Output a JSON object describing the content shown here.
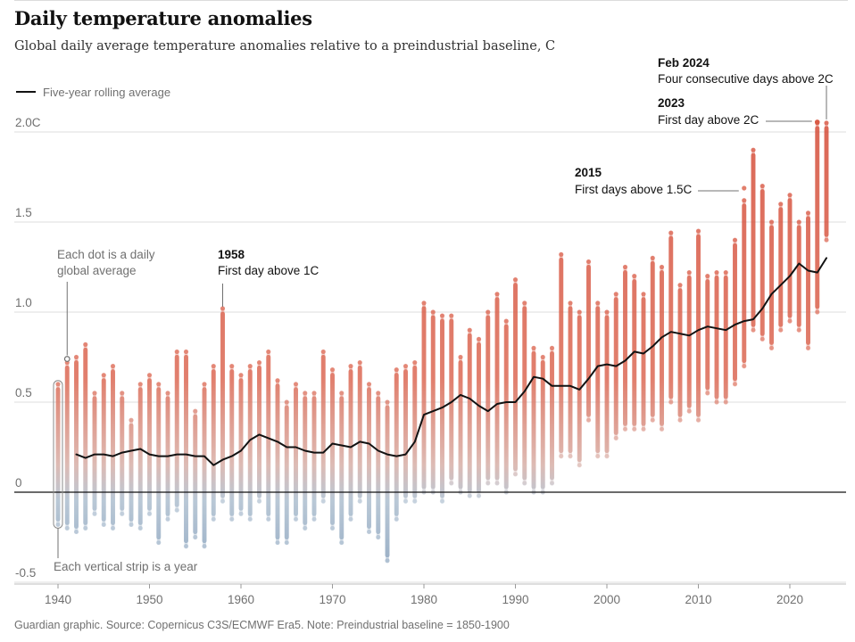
{
  "header": {
    "title": "Daily temperature anomalies",
    "subtitle": "Global daily average temperature anomalies relative to a preindustrial baseline, C"
  },
  "legend": {
    "line_label": "Five-year rolling average"
  },
  "footer": {
    "source": "Guardian graphic. Source: Copernicus C3S/ECMWF Era5. Note: Preindustrial baseline = 1850-1900"
  },
  "colors": {
    "warm": "#d95a45",
    "cool": "#8aa2bc",
    "line": "#121212",
    "grid": "#dcdcdc",
    "axis": "#121212"
  },
  "chart_data": {
    "type": "scatter",
    "title": "Daily temperature anomalies",
    "xlabel": "",
    "ylabel": "C",
    "xlim": [
      1940,
      2024
    ],
    "ylim": [
      -0.5,
      2.0
    ],
    "x_ticks": [
      1940,
      1950,
      1960,
      1970,
      1980,
      1990,
      2000,
      2010,
      2020
    ],
    "y_ticks": [
      {
        "value": -0.5,
        "label": "-0.5"
      },
      {
        "value": 0,
        "label": "0"
      },
      {
        "value": 0.5,
        "label": "0.5"
      },
      {
        "value": 1.0,
        "label": "1.0"
      },
      {
        "value": 1.5,
        "label": "1.5"
      },
      {
        "value": 2.0,
        "label": "2.0C"
      }
    ],
    "year_strips": {
      "years": [
        1940,
        1941,
        1942,
        1943,
        1944,
        1945,
        1946,
        1947,
        1948,
        1949,
        1950,
        1951,
        1952,
        1953,
        1954,
        1955,
        1956,
        1957,
        1958,
        1959,
        1960,
        1961,
        1962,
        1963,
        1964,
        1965,
        1966,
        1967,
        1968,
        1969,
        1970,
        1971,
        1972,
        1973,
        1974,
        1975,
        1976,
        1977,
        1978,
        1979,
        1980,
        1981,
        1982,
        1983,
        1984,
        1985,
        1986,
        1987,
        1988,
        1989,
        1990,
        1991,
        1992,
        1993,
        1994,
        1995,
        1996,
        1997,
        1998,
        1999,
        2000,
        2001,
        2002,
        2003,
        2004,
        2005,
        2006,
        2007,
        2008,
        2009,
        2010,
        2011,
        2012,
        2013,
        2014,
        2015,
        2016,
        2017,
        2018,
        2019,
        2020,
        2021,
        2022,
        2023,
        2024
      ],
      "min": [
        -0.18,
        -0.2,
        -0.22,
        -0.2,
        -0.12,
        -0.18,
        -0.2,
        -0.12,
        -0.18,
        -0.2,
        -0.12,
        -0.28,
        -0.15,
        -0.1,
        -0.3,
        -0.25,
        -0.3,
        -0.15,
        -0.05,
        -0.15,
        -0.12,
        -0.15,
        -0.05,
        -0.15,
        -0.28,
        -0.28,
        -0.15,
        -0.2,
        -0.15,
        -0.05,
        -0.2,
        -0.28,
        -0.15,
        -0.05,
        -0.22,
        -0.25,
        -0.38,
        -0.15,
        -0.05,
        -0.05,
        0.0,
        0.0,
        -0.05,
        0.05,
        0.0,
        -0.02,
        -0.02,
        0.05,
        0.05,
        0.0,
        0.1,
        0.05,
        0.0,
        0.0,
        0.05,
        0.2,
        0.2,
        0.15,
        0.4,
        0.2,
        0.2,
        0.3,
        0.35,
        0.35,
        0.35,
        0.4,
        0.35,
        0.5,
        0.4,
        0.45,
        0.4,
        0.55,
        0.5,
        0.5,
        0.6,
        0.7,
        0.9,
        0.85,
        0.8,
        0.9,
        0.95,
        0.9,
        0.8,
        1.0,
        1.4
      ],
      "max": [
        0.6,
        0.72,
        0.75,
        0.82,
        0.55,
        0.65,
        0.7,
        0.55,
        0.4,
        0.6,
        0.65,
        0.6,
        0.55,
        0.78,
        0.78,
        0.45,
        0.6,
        0.7,
        1.02,
        0.7,
        0.65,
        0.7,
        0.72,
        0.78,
        0.62,
        0.5,
        0.6,
        0.55,
        0.55,
        0.78,
        0.68,
        0.55,
        0.7,
        0.72,
        0.6,
        0.55,
        0.5,
        0.68,
        0.7,
        0.72,
        1.05,
        1.0,
        0.98,
        0.98,
        0.75,
        0.9,
        0.85,
        1.0,
        1.1,
        0.95,
        1.18,
        1.05,
        0.8,
        0.75,
        0.8,
        1.32,
        1.05,
        1.0,
        1.28,
        1.05,
        1.0,
        1.1,
        1.25,
        1.2,
        1.1,
        1.3,
        1.25,
        1.44,
        1.15,
        1.22,
        1.45,
        1.2,
        1.22,
        1.22,
        1.4,
        1.62,
        1.9,
        1.7,
        1.5,
        1.6,
        1.65,
        1.5,
        1.55,
        2.05,
        2.05
      ]
    },
    "rolling_average": {
      "name": "Five-year rolling average",
      "x": [
        1942,
        1943,
        1944,
        1945,
        1946,
        1947,
        1948,
        1949,
        1950,
        1951,
        1952,
        1953,
        1954,
        1955,
        1956,
        1957,
        1958,
        1959,
        1960,
        1961,
        1962,
        1963,
        1964,
        1965,
        1966,
        1967,
        1968,
        1969,
        1970,
        1971,
        1972,
        1973,
        1974,
        1975,
        1976,
        1977,
        1978,
        1979,
        1980,
        1981,
        1982,
        1983,
        1984,
        1985,
        1986,
        1987,
        1988,
        1989,
        1990,
        1991,
        1992,
        1993,
        1994,
        1995,
        1996,
        1997,
        1998,
        1999,
        2000,
        2001,
        2002,
        2003,
        2004,
        2005,
        2006,
        2007,
        2008,
        2009,
        2010,
        2011,
        2012,
        2013,
        2014,
        2015,
        2016,
        2017,
        2018,
        2019,
        2020,
        2021,
        2022,
        2023,
        2024
      ],
      "y": [
        0.21,
        0.19,
        0.21,
        0.21,
        0.2,
        0.22,
        0.23,
        0.24,
        0.21,
        0.2,
        0.2,
        0.21,
        0.21,
        0.2,
        0.2,
        0.15,
        0.18,
        0.2,
        0.23,
        0.29,
        0.32,
        0.3,
        0.28,
        0.25,
        0.25,
        0.23,
        0.22,
        0.22,
        0.27,
        0.26,
        0.25,
        0.28,
        0.27,
        0.23,
        0.21,
        0.2,
        0.21,
        0.28,
        0.43,
        0.45,
        0.47,
        0.5,
        0.54,
        0.52,
        0.48,
        0.45,
        0.49,
        0.5,
        0.5,
        0.56,
        0.64,
        0.63,
        0.59,
        0.59,
        0.59,
        0.57,
        0.63,
        0.7,
        0.71,
        0.7,
        0.73,
        0.78,
        0.77,
        0.81,
        0.86,
        0.89,
        0.88,
        0.87,
        0.9,
        0.92,
        0.91,
        0.9,
        0.93,
        0.95,
        0.96,
        1.02,
        1.1,
        1.15,
        1.2,
        1.27,
        1.23,
        1.22,
        1.3
      ]
    },
    "annotations": [
      {
        "id": "1958",
        "title": "1958",
        "text": "First day above 1C",
        "year": 1958,
        "value": 1.02
      },
      {
        "id": "2015",
        "title": "2015",
        "text": "First days above 1.5C",
        "year": 2015,
        "value": 1.6
      },
      {
        "id": "2023",
        "title": "2023",
        "text": "First day above 2C",
        "year": 2023,
        "value": 2.05
      },
      {
        "id": "feb2024",
        "title": "Feb 2024",
        "text": "Four consecutive days above 2C",
        "year": 2024,
        "value": 2.05
      }
    ],
    "guides": {
      "dot": "Each dot is a daily global average",
      "dot_lines": [
        "Each dot is a daily",
        "global average"
      ],
      "strip": "Each vertical strip is a year"
    }
  }
}
